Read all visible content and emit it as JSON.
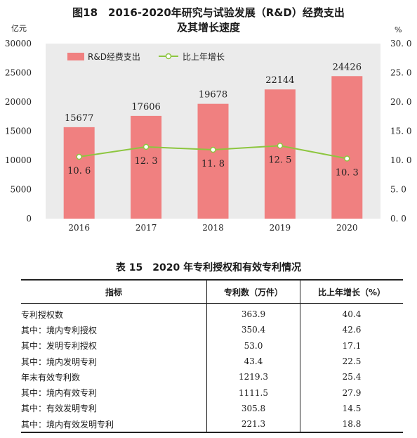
{
  "figure": {
    "title_line1": "图18　2016-2020年研究与试验发展（R&D）经费支出",
    "title_line2": "及其增长速度",
    "left_unit": "亿元",
    "right_unit": "%"
  },
  "chart_data": {
    "type": "bar",
    "categories": [
      "2016",
      "2017",
      "2018",
      "2019",
      "2020"
    ],
    "series": [
      {
        "name": "R&D经费支出",
        "type": "bar",
        "axis": "left",
        "values": [
          15677,
          17606,
          19678,
          22144,
          24426
        ],
        "labels": [
          "15677",
          "17606",
          "19678",
          "22144",
          "24426"
        ]
      },
      {
        "name": "比上年增长",
        "type": "line",
        "axis": "right",
        "values": [
          10.6,
          12.3,
          11.8,
          12.5,
          10.3
        ],
        "labels": [
          "10. 6",
          "12. 3",
          "11. 8",
          "12. 5",
          "10. 3"
        ]
      }
    ],
    "y_left": {
      "lim": [
        0,
        30000
      ],
      "ticks": [
        "0",
        "5000",
        "10000",
        "15000",
        "20000",
        "25000",
        "30000"
      ]
    },
    "y_right": {
      "lim": [
        0,
        30
      ],
      "ticks": [
        "0. 0",
        "5. 0",
        "10. 0",
        "15. 0",
        "20. 0",
        "25. 0",
        "30. 0"
      ]
    },
    "legend": "top-left",
    "grid": false,
    "colors": {
      "bar": "#f08080",
      "line": "#8dc63f",
      "plot_bg": "#ebebeb"
    }
  },
  "table": {
    "title": "表 15　2020 年专利授权和有效专利情况",
    "headers": [
      "指标",
      "专利数（万件）",
      "比上年增长（%）"
    ],
    "rows": [
      {
        "label": "专利授权数",
        "level": 0,
        "count": "363.9",
        "growth": "40.4"
      },
      {
        "label": "其中：境内专利授权",
        "level": 1,
        "count": "350.4",
        "growth": "42.6"
      },
      {
        "label": "其中：发明专利授权",
        "level": 1,
        "count": "53.0",
        "growth": "17.1"
      },
      {
        "label": "其中：境内发明专利",
        "level": 2,
        "count": "43.4",
        "growth": "22.5"
      },
      {
        "label": "年末有效专利数",
        "level": 0,
        "count": "1219.3",
        "growth": "25.4"
      },
      {
        "label": "其中：境内有效专利",
        "level": 1,
        "count": "1111.5",
        "growth": "27.9"
      },
      {
        "label": "其中：有效发明专利",
        "level": 1,
        "count": "305.8",
        "growth": "14.5"
      },
      {
        "label": "其中：境内有效发明专利",
        "level": 3,
        "count": "221.3",
        "growth": "18.8"
      }
    ]
  }
}
